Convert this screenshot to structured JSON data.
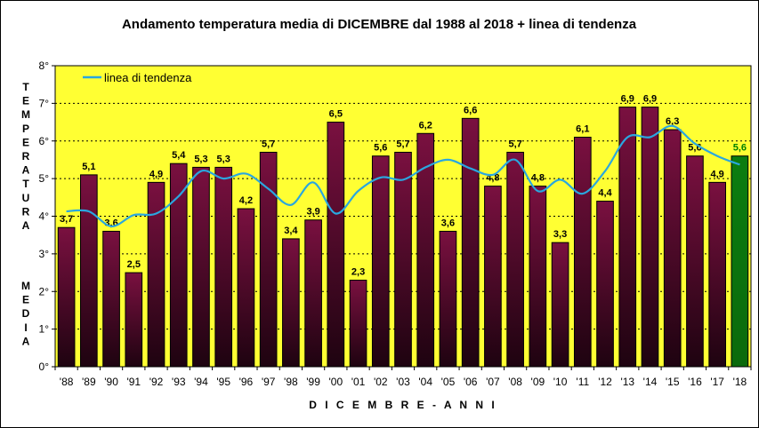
{
  "chart_data": {
    "type": "bar",
    "title": "Andamento temperatura media di DICEMBRE dal 1988 al 2018 + linea di tendenza",
    "xlabel": "D I C E M B R E  -  A N N I",
    "ylabel_top": "TEMPERATURA",
    "ylabel_bottom": "MEDIA",
    "ylim": [
      0,
      8
    ],
    "yticks": [
      "0°",
      "1°",
      "2°",
      "3°",
      "4°",
      "5°",
      "6°",
      "7°",
      "8°"
    ],
    "categories": [
      "'88",
      "'89",
      "'90",
      "'91",
      "'92",
      "'93",
      "'94",
      "'95",
      "'96",
      "'97",
      "'98",
      "'99",
      "'00",
      "'01",
      "'02",
      "'03",
      "'04",
      "'05",
      "'06",
      "'07",
      "'08",
      "'09",
      "'10",
      "'11",
      "'12",
      "'13",
      "'14",
      "'15",
      "'16",
      "'17",
      "'18"
    ],
    "values": [
      3.7,
      5.1,
      3.6,
      2.5,
      4.9,
      5.4,
      5.3,
      5.3,
      4.2,
      5.7,
      3.4,
      3.9,
      6.5,
      2.3,
      5.6,
      5.7,
      6.2,
      3.6,
      6.6,
      4.8,
      5.7,
      4.8,
      3.3,
      6.1,
      4.4,
      6.9,
      6.9,
      6.3,
      5.6,
      4.9,
      5.6
    ],
    "value_labels": [
      "3,7",
      "5,1",
      "3,6",
      "2,5",
      "4,9",
      "5,4",
      "5,3",
      "5,3",
      "4,2",
      "5,7",
      "3,4",
      "3,9",
      "6,5",
      "2,3",
      "5,6",
      "5,7",
      "6,2",
      "3,6",
      "6,6",
      "4,8",
      "5,7",
      "4,8",
      "3,3",
      "6,1",
      "4,4",
      "6,9",
      "6,9",
      "6,3",
      "5,6",
      "4,9",
      "5,6"
    ],
    "trend": {
      "name": "linea di tendenza",
      "values": [
        4.13,
        4.13,
        3.73,
        4.03,
        4.07,
        4.53,
        5.2,
        5.0,
        5.13,
        4.73,
        4.3,
        4.9,
        4.07,
        4.67,
        5.03,
        4.97,
        5.3,
        5.5,
        5.27,
        5.1,
        5.5,
        4.67,
        4.97,
        4.6,
        5.2,
        6.1,
        6.1,
        6.4,
        5.93,
        5.6,
        5.37
      ]
    },
    "legend": "top-left",
    "colors": {
      "plot_background": "#ffff33",
      "bar_top": "#7a1040",
      "bar_bottom": "#1e0310",
      "bar_last_top": "#0b7d10",
      "bar_last_bottom": "#0a6a0c",
      "trend_line": "#2aa7df",
      "last_label": "#008000"
    }
  }
}
